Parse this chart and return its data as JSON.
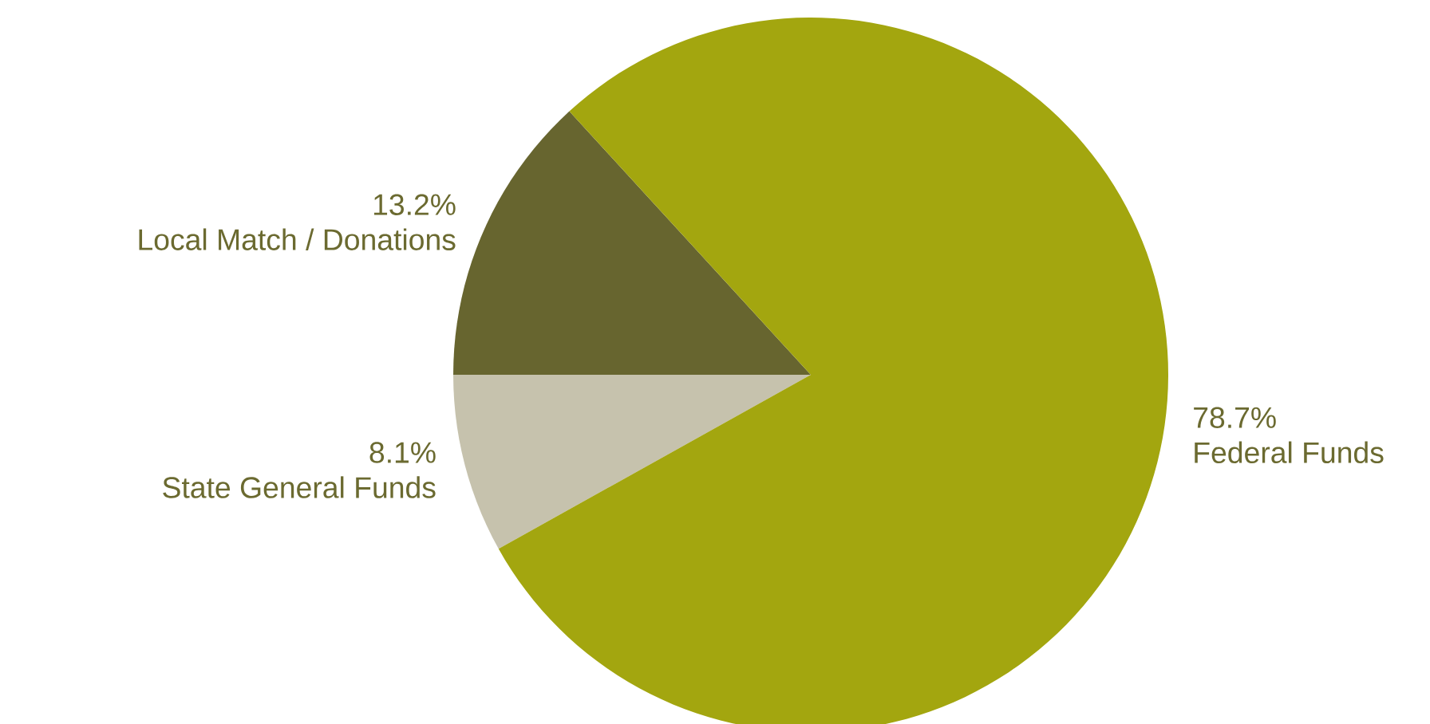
{
  "chart_data": {
    "type": "pie",
    "categories": [
      "Local Match / Donations",
      "State General Funds",
      "Federal Funds"
    ],
    "values": [
      13.2,
      8.1,
      78.7
    ],
    "value_labels": [
      "13.2%",
      "8.1%",
      "78.7%"
    ],
    "colors": [
      "#67652f",
      "#c6c2ad",
      "#a3a60f"
    ]
  }
}
